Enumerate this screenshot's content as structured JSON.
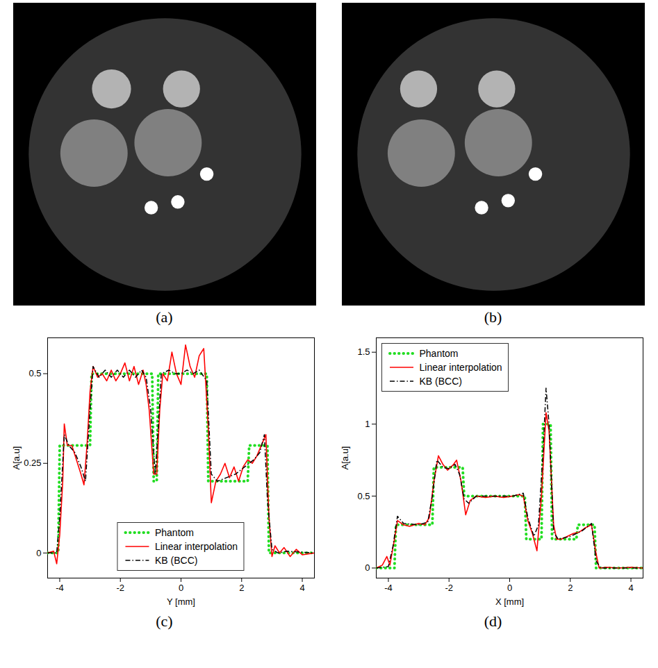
{
  "chart_data": [
    {
      "type": "image",
      "label": "(a)",
      "extent": [
        -4.5,
        4.5
      ],
      "clim": [
        0,
        1
      ],
      "disks": {
        "x": [
          0,
          -1.59,
          0.49,
          -2.11,
          0.09,
          1.24,
          0.38,
          -0.41
        ],
        "y": [
          0,
          1.95,
          1.95,
          0.04,
          0.35,
          -0.58,
          -1.41,
          -1.58
        ],
        "r": [
          4.05,
          0.58,
          0.55,
          1.0,
          1.0,
          0.2,
          0.2,
          0.2
        ],
        "values": [
          0.2,
          0.7,
          0.7,
          0.5,
          0.5,
          1,
          1,
          1
        ]
      }
    },
    {
      "type": "image",
      "label": "(b)",
      "extent": [
        -4.5,
        4.5
      ],
      "clim": [
        0,
        1
      ],
      "disks": {
        "x": [
          0,
          -2.23,
          0.09,
          -2.15,
          0.14,
          1.24,
          0.43,
          -0.36
        ],
        "y": [
          0,
          1.95,
          1.95,
          0.04,
          0.35,
          -0.58,
          -1.37,
          -1.58
        ],
        "r": [
          4.05,
          0.55,
          0.55,
          1.0,
          1.0,
          0.2,
          0.2,
          0.2
        ],
        "values": [
          0.2,
          0.7,
          0.7,
          0.5,
          0.5,
          1,
          1,
          1
        ]
      }
    },
    {
      "type": "line",
      "label": "(c)",
      "xlabel": "Y [mm]",
      "ylabel": "A[a.u]",
      "xlim": [
        -4.4,
        4.4
      ],
      "xticks": [
        -4,
        -2,
        0,
        2,
        4
      ],
      "ylim": [
        -0.07,
        0.6
      ],
      "yticks": [
        0,
        0.25,
        0.5
      ],
      "grid": false,
      "legend": "bottom",
      "series": [
        {
          "name": "Phantom",
          "color": "#22dd22",
          "line_style": "dotted",
          "x": [
            -4.4,
            -4.05,
            -4.0,
            -3.0,
            -2.95,
            -0.95,
            -0.9,
            -0.8,
            -0.75,
            0.85,
            0.9,
            2.2,
            2.25,
            2.85,
            2.9,
            4.4
          ],
          "values": [
            0,
            0,
            0.3,
            0.3,
            0.5,
            0.5,
            0.2,
            0.2,
            0.5,
            0.5,
            0.2,
            0.2,
            0.3,
            0.3,
            0,
            0
          ]
        },
        {
          "name": "Linear interpolation",
          "color": "#ff0000",
          "line_style": "solid",
          "x": [
            -4.4,
            -4.2,
            -4.1,
            -4.0,
            -3.9,
            -3.85,
            -3.75,
            -3.6,
            -3.45,
            -3.3,
            -3.2,
            -3.1,
            -3.0,
            -2.9,
            -2.75,
            -2.6,
            -2.45,
            -2.3,
            -2.15,
            -2.0,
            -1.85,
            -1.7,
            -1.55,
            -1.4,
            -1.25,
            -1.15,
            -1.05,
            -0.9,
            -0.8,
            -0.7,
            -0.6,
            -0.45,
            -0.3,
            -0.15,
            0,
            0.15,
            0.3,
            0.45,
            0.6,
            0.75,
            0.9,
            1.0,
            1.15,
            1.3,
            1.45,
            1.6,
            1.75,
            1.9,
            2.05,
            2.2,
            2.35,
            2.5,
            2.65,
            2.8,
            2.9,
            3.0,
            3.1,
            3.25,
            3.4,
            3.6,
            3.8,
            4.0,
            4.4
          ],
          "values": [
            0,
            0.005,
            -0.03,
            0.05,
            0.2,
            0.36,
            0.3,
            0.3,
            0.26,
            0.22,
            0.19,
            0.3,
            0.45,
            0.52,
            0.49,
            0.5,
            0.48,
            0.51,
            0.48,
            0.5,
            0.53,
            0.48,
            0.52,
            0.47,
            0.51,
            0.47,
            0.4,
            0.22,
            0.22,
            0.4,
            0.5,
            0.48,
            0.56,
            0.5,
            0.47,
            0.58,
            0.52,
            0.49,
            0.55,
            0.57,
            0.35,
            0.14,
            0.2,
            0.22,
            0.25,
            0.21,
            0.24,
            0.2,
            0.24,
            0.26,
            0.25,
            0.27,
            0.3,
            0.33,
            0.1,
            -0.01,
            0.02,
            0,
            0.015,
            -0.01,
            0.01,
            -0.005,
            0
          ]
        },
        {
          "name": "KB (BCC)",
          "color": "#000000",
          "line_style": "dashdot",
          "x": [
            -4.4,
            -4.1,
            -4.0,
            -3.85,
            -3.7,
            -3.5,
            -3.3,
            -3.15,
            -3.0,
            -2.9,
            -2.7,
            -2.5,
            -2.3,
            -2.1,
            -1.9,
            -1.7,
            -1.5,
            -1.3,
            -1.15,
            -1.0,
            -0.85,
            -0.75,
            -0.65,
            -0.4,
            -0.2,
            0,
            0.2,
            0.4,
            0.6,
            0.85,
            1.0,
            1.2,
            1.5,
            1.8,
            2.1,
            2.4,
            2.6,
            2.75,
            2.85,
            3.0,
            3.2,
            3.5,
            4.4
          ],
          "values": [
            0,
            0,
            0.1,
            0.33,
            0.3,
            0.28,
            0.24,
            0.2,
            0.4,
            0.52,
            0.49,
            0.51,
            0.49,
            0.51,
            0.49,
            0.51,
            0.49,
            0.51,
            0.49,
            0.4,
            0.22,
            0.35,
            0.5,
            0.51,
            0.5,
            0.5,
            0.51,
            0.5,
            0.51,
            0.48,
            0.22,
            0.2,
            0.21,
            0.22,
            0.24,
            0.26,
            0.28,
            0.33,
            0.15,
            0.01,
            0,
            0.005,
            0
          ]
        }
      ]
    },
    {
      "type": "line",
      "label": "(d)",
      "xlabel": "X [mm]",
      "ylabel": "A[a.u]",
      "xlim": [
        -4.4,
        4.4
      ],
      "xticks": [
        -4,
        -2,
        0,
        2,
        4
      ],
      "ylim": [
        -0.07,
        1.6
      ],
      "yticks": [
        0,
        0.5,
        1,
        1.5
      ],
      "grid": false,
      "legend": "top-left",
      "series": [
        {
          "name": "Phantom",
          "color": "#22dd22",
          "line_style": "dotted",
          "x": [
            -4.4,
            -3.8,
            -3.75,
            -2.55,
            -2.5,
            -1.55,
            -1.5,
            0.5,
            0.55,
            1.05,
            1.1,
            1.35,
            1.4,
            2.2,
            2.25,
            2.8,
            2.85,
            4.4
          ],
          "values": [
            0,
            0,
            0.3,
            0.3,
            0.7,
            0.7,
            0.5,
            0.5,
            0.2,
            0.2,
            1,
            1,
            0.2,
            0.2,
            0.3,
            0.3,
            0,
            0
          ]
        },
        {
          "name": "Linear interpolation",
          "color": "#ff0000",
          "line_style": "solid",
          "x": [
            -4.4,
            -4.2,
            -4.05,
            -3.95,
            -3.8,
            -3.7,
            -3.5,
            -3.3,
            -3.0,
            -2.8,
            -2.65,
            -2.5,
            -2.35,
            -2.2,
            -2.05,
            -1.85,
            -1.75,
            -1.6,
            -1.45,
            -1.3,
            -1.1,
            -0.8,
            -0.5,
            -0.2,
            0.1,
            0.3,
            0.45,
            0.6,
            0.75,
            0.9,
            1.05,
            1.2,
            1.3,
            1.45,
            1.55,
            1.7,
            1.9,
            2.1,
            2.3,
            2.5,
            2.7,
            2.85,
            2.95,
            3.2,
            3.6,
            4.0,
            4.4
          ],
          "values": [
            0,
            0.02,
            0.08,
            0.02,
            0.2,
            0.33,
            0.3,
            0.29,
            0.31,
            0.3,
            0.35,
            0.6,
            0.78,
            0.72,
            0.68,
            0.72,
            0.75,
            0.6,
            0.37,
            0.47,
            0.5,
            0.49,
            0.5,
            0.49,
            0.5,
            0.51,
            0.5,
            0.33,
            0.24,
            0.12,
            0.5,
            1.08,
            0.95,
            0.3,
            0.2,
            0.2,
            0.22,
            0.24,
            0.25,
            0.28,
            0.3,
            0.1,
            0,
            0.005,
            0,
            0.005,
            0
          ]
        },
        {
          "name": "KB (BCC)",
          "color": "#000000",
          "line_style": "dashdot",
          "x": [
            -4.4,
            -4.0,
            -3.85,
            -3.7,
            -3.5,
            -3.0,
            -2.7,
            -2.55,
            -2.4,
            -2.2,
            -2.0,
            -1.8,
            -1.65,
            -1.5,
            -1.35,
            -1.1,
            -0.5,
            0.1,
            0.45,
            0.6,
            0.8,
            0.95,
            1.1,
            1.2,
            1.3,
            1.45,
            1.6,
            2.0,
            2.4,
            2.7,
            2.85,
            3.0,
            4.4
          ],
          "values": [
            0,
            0.01,
            0.15,
            0.36,
            0.31,
            0.3,
            0.32,
            0.5,
            0.75,
            0.7,
            0.69,
            0.72,
            0.65,
            0.48,
            0.45,
            0.5,
            0.5,
            0.5,
            0.52,
            0.35,
            0.22,
            0.3,
            0.8,
            1.25,
            1.0,
            0.25,
            0.2,
            0.22,
            0.26,
            0.31,
            0.05,
            0,
            0
          ]
        }
      ]
    }
  ]
}
